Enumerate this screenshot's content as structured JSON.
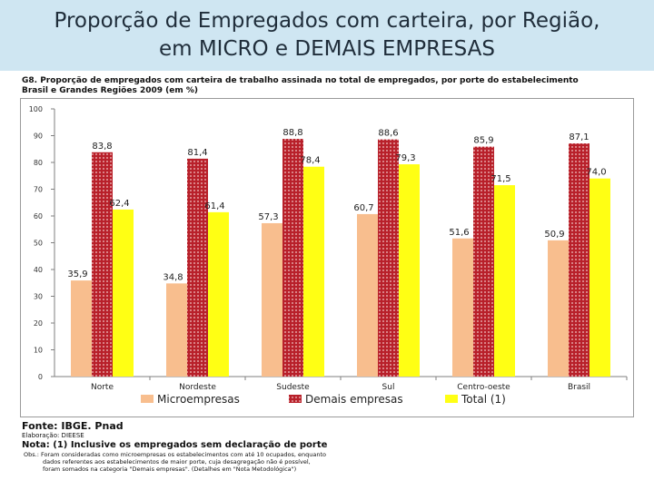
{
  "slide": {
    "title_line1": "Proporção de Empregados com carteira, por Região,",
    "title_line2": "em MICRO e DEMAIS EMPRESAS"
  },
  "chart_heading": {
    "line1": "G8. Proporção de empregados com carteira de trabalho assinada no total de empregados, por porte do estabelecimento",
    "line2": "Brasil e Grandes Regiões 2009 (em %)"
  },
  "colors": {
    "micro": "#f8be8e",
    "demais_bg": "#b8202a",
    "demais_dot": "#f3c8c8",
    "total": "#ffff14",
    "header_bg": "#cfe6f2"
  },
  "chart_data": {
    "type": "bar",
    "title": "G8. Proporção de empregados com carteira de trabalho assinada no total de empregados, por porte do estabelecimento",
    "subtitle": "Brasil e Grandes Regiões 2009 (em %)",
    "categories": [
      "Norte",
      "Nordeste",
      "Sudeste",
      "Sul",
      "Centro-oeste",
      "Brasil"
    ],
    "series": [
      {
        "name": "Microempresas",
        "values": [
          35.9,
          34.8,
          57.3,
          60.7,
          51.6,
          50.9
        ],
        "labels": [
          "35,9",
          "34,8",
          "57,3",
          "60,7",
          "51,6",
          "50,9"
        ]
      },
      {
        "name": "Demais empresas",
        "values": [
          83.8,
          81.4,
          88.8,
          88.6,
          85.9,
          87.1
        ],
        "labels": [
          "83,8",
          "81,4",
          "88,8",
          "88,6",
          "85,9",
          "87,1"
        ]
      },
      {
        "name": "Total (1)",
        "values": [
          62.4,
          61.4,
          78.4,
          79.3,
          71.5,
          74.0
        ],
        "labels": [
          "62,4",
          "61,4",
          "78,4",
          "79,3",
          "71,5",
          "74,0"
        ]
      }
    ],
    "yticks": [
      0,
      10,
      20,
      30,
      40,
      50,
      60,
      70,
      80,
      90,
      100
    ],
    "ylim": [
      0,
      100
    ],
    "xlabel": "",
    "ylabel": "",
    "grid": false,
    "legend_position": "bottom"
  },
  "notes": {
    "source": "Fonte: IBGE. Pnad",
    "elaboration": "Elaboração: DIEESE",
    "note": "Nota: (1) Inclusive os empregados sem declaração de porte",
    "obs_line1": "Obs.: Foram consideradas como microempresas os estabelecimentos com até 10 ocupados, enquanto",
    "obs_line2": "dados referentes aos estabelecimentos de maior porte, cuja desagregação não é possível,",
    "obs_line3": "foram somados na categoria \"Demais empresas\". (Detalhes em \"Nota Metodológica\")"
  }
}
